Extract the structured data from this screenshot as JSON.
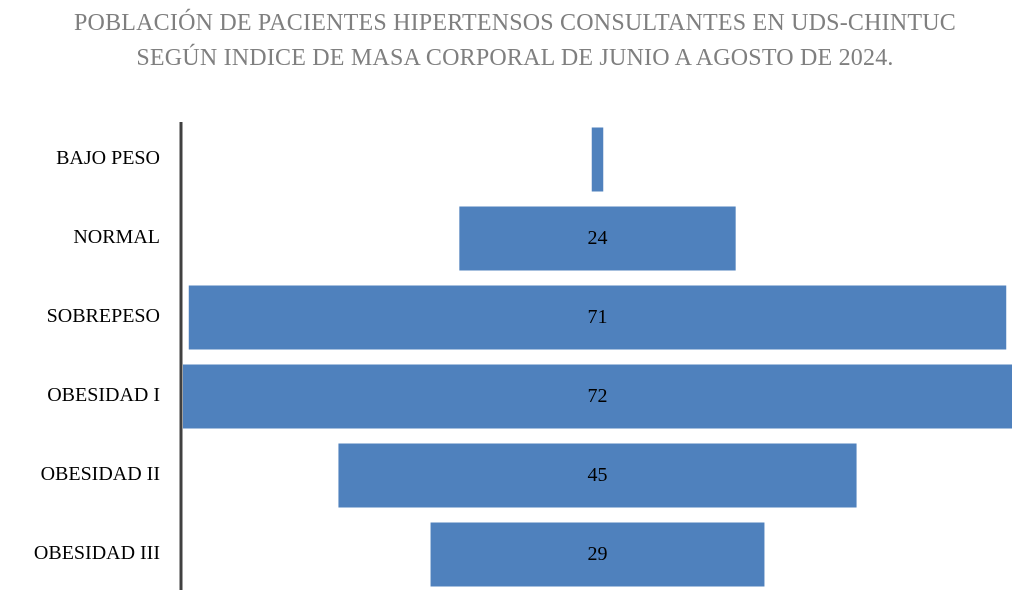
{
  "chart_data": {
    "type": "funnel",
    "title": "POBLACIÓN DE PACIENTES HIPERTENSOS CONSULTANTES EN UDS-CHINTUC SEGÚN INDICE DE MASA CORPORAL DE JUNIO A AGOSTO DE 2024.",
    "categories": [
      "BAJO PESO",
      "NORMAL",
      "SOBREPESO",
      "OBESIDAD I",
      "OBESIDAD II",
      "OBESIDAD III"
    ],
    "values": [
      1,
      24,
      71,
      72,
      45,
      29
    ],
    "value_labels": [
      null,
      "24",
      "71",
      "72",
      "45",
      "29"
    ],
    "color": "#4f81bd"
  }
}
